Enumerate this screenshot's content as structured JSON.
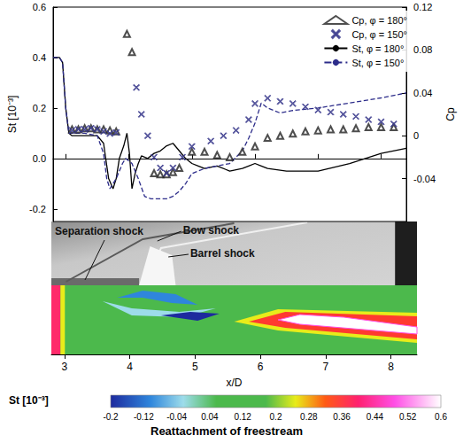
{
  "chart_data": {
    "type": "line",
    "xlabel": "x/D",
    "ylabel": "St [10⁻³]",
    "y2label": "Cp",
    "xlim": [
      2.8,
      8.4
    ],
    "xticks": [
      3,
      4,
      5,
      6,
      7,
      8
    ],
    "ylim": [
      -0.25,
      0.6
    ],
    "yticks": [
      -0.2,
      {
        "value": 0,
        "label": "0.0"
      },
      0.2,
      0.4,
      0.6
    ],
    "y2lim": [
      -0.08,
      0.12
    ],
    "y2ticks": [
      -0.04,
      0,
      0.04,
      0.08,
      0.12
    ],
    "grid": false,
    "legend": "upper right",
    "series": [
      {
        "name": "Cp, φ = 180°",
        "type": "scatter",
        "marker": "triangle",
        "color": "#222222",
        "axis": "y2",
        "x": [
          3.1,
          3.2,
          3.3,
          3.4,
          3.5,
          3.6,
          3.7,
          3.8,
          3.97,
          4.05,
          4.4,
          4.5,
          4.6,
          4.7,
          4.8,
          5.0,
          5.2,
          5.4,
          5.6,
          5.8,
          6.0,
          6.2,
          6.4,
          6.6,
          6.8,
          7.0,
          7.2,
          7.4,
          7.6,
          7.8,
          8.0,
          8.2
        ],
        "values": [
          0.006,
          0.006,
          0.007,
          0.007,
          0.006,
          0.006,
          0.005,
          0.004,
          0.095,
          0.078,
          -0.035,
          -0.036,
          -0.036,
          -0.034,
          -0.03,
          -0.015,
          -0.015,
          -0.018,
          -0.02,
          -0.015,
          -0.01,
          -0.002,
          0.0,
          0.002,
          0.004,
          0.005,
          0.006,
          0.006,
          0.007,
          0.008,
          0.008,
          0.008
        ]
      },
      {
        "name": "Cp, φ = 150°",
        "type": "scatter",
        "marker": "x",
        "color": "#3a3a8c",
        "axis": "y2",
        "x": [
          3.1,
          3.2,
          3.3,
          3.4,
          3.5,
          3.6,
          3.7,
          3.8,
          4.12,
          4.2,
          4.3,
          4.4,
          4.5,
          4.6,
          4.7,
          4.85,
          5.0,
          5.3,
          5.5,
          5.7,
          5.9,
          6.0,
          6.2,
          6.4,
          6.6,
          6.8,
          7.0,
          7.2,
          7.4,
          7.6,
          7.8,
          8.0,
          8.2
        ],
        "values": [
          0.005,
          0.006,
          0.006,
          0.007,
          0.006,
          0.004,
          0.002,
          0.003,
          0.045,
          0.02,
          0.0,
          -0.02,
          -0.03,
          -0.035,
          -0.03,
          -0.02,
          -0.01,
          -0.005,
          0.0,
          0.005,
          0.015,
          0.03,
          0.035,
          0.032,
          0.03,
          0.027,
          0.024,
          0.022,
          0.02,
          0.018,
          0.015,
          0.013,
          0.011
        ]
      },
      {
        "name": "St, φ = 180°",
        "type": "line",
        "line_style": "solid",
        "color": "#000000",
        "x": [
          2.8,
          2.9,
          2.95,
          3.0,
          3.05,
          3.1,
          3.3,
          3.5,
          3.6,
          3.68,
          3.75,
          3.8,
          3.85,
          3.92,
          3.97,
          4.01,
          4.05,
          4.1,
          4.15,
          4.2,
          4.3,
          4.4,
          4.5,
          4.6,
          4.7,
          4.8,
          4.9,
          5.0,
          5.1,
          5.2,
          5.4,
          5.6,
          5.8,
          5.9,
          6.0,
          6.1,
          6.2,
          6.5,
          7.0,
          7.5,
          8.0,
          8.4
        ],
        "values": [
          0.4,
          0.4,
          0.38,
          0.2,
          0.1,
          0.09,
          0.09,
          0.09,
          0.06,
          -0.08,
          -0.12,
          -0.08,
          0.0,
          0.05,
          0.1,
          0.02,
          -0.12,
          -0.06,
          -0.02,
          0.01,
          0.0,
          0.02,
          0.03,
          0.05,
          0.06,
          0.03,
          0.0,
          -0.02,
          -0.03,
          -0.04,
          -0.03,
          -0.05,
          -0.04,
          -0.03,
          -0.02,
          -0.03,
          -0.04,
          -0.05,
          -0.05,
          -0.02,
          0.02,
          0.04
        ]
      },
      {
        "name": "St, φ = 150°",
        "type": "line",
        "line_style": "dashed",
        "color": "#2c2c8a",
        "x": [
          2.8,
          2.9,
          2.95,
          3.0,
          3.05,
          3.1,
          3.3,
          3.5,
          3.6,
          3.65,
          3.7,
          3.8,
          3.9,
          3.95,
          4.05,
          4.15,
          4.25,
          4.35,
          4.5,
          4.6,
          4.7,
          4.8,
          4.9,
          5.0,
          5.2,
          5.4,
          5.6,
          5.8,
          5.9,
          6.0,
          6.1,
          6.2,
          6.4,
          6.6,
          7.0,
          7.5,
          8.0,
          8.4
        ],
        "values": [
          0.4,
          0.4,
          0.38,
          0.2,
          0.1,
          0.1,
          0.1,
          0.09,
          0.02,
          -0.08,
          -0.12,
          -0.08,
          -0.02,
          0.0,
          -0.02,
          -0.08,
          -0.15,
          -0.16,
          -0.16,
          -0.16,
          -0.15,
          -0.13,
          -0.1,
          -0.06,
          -0.04,
          -0.03,
          -0.02,
          0.03,
          0.08,
          0.14,
          0.22,
          0.2,
          0.18,
          0.19,
          0.2,
          0.22,
          0.24,
          0.26
        ]
      }
    ],
    "annotations": [
      "Separation shock",
      "Bow shock",
      "Barrel shock",
      "Reattachment of freestream"
    ],
    "colorbar": {
      "label": "St [10⁻³]",
      "range": [
        -0.2,
        0.6
      ],
      "ticks": [
        -0.2,
        -0.12,
        -0.04,
        0.04,
        0.12,
        0.2,
        0.28,
        0.36,
        0.44,
        0.52,
        0.6
      ]
    }
  }
}
